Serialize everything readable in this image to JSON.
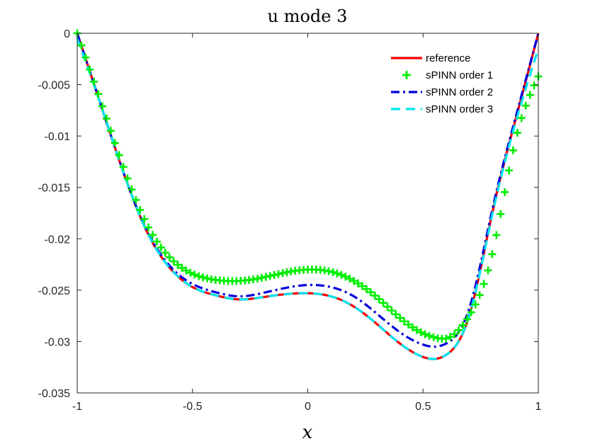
{
  "chart_data": {
    "type": "line",
    "title": "u mode 3",
    "xlabel": "x",
    "ylabel": "",
    "xlim": [
      -1,
      1
    ],
    "ylim": [
      -0.035,
      0
    ],
    "xticks": [
      -1,
      -0.5,
      0,
      0.5,
      1
    ],
    "xtick_labels": [
      "-1",
      "-0.5",
      "0",
      "0.5",
      "1"
    ],
    "yticks": [
      0,
      -0.005,
      -0.01,
      -0.015,
      -0.02,
      -0.025,
      -0.03,
      -0.035
    ],
    "ytick_labels": [
      "0",
      "-0.005",
      "-0.01",
      "-0.015",
      "-0.02",
      "-0.025",
      "-0.03",
      "-0.035"
    ],
    "grid": false,
    "legend_position": "top-right",
    "x": [
      -1.0,
      -0.9,
      -0.8,
      -0.7,
      -0.6,
      -0.5,
      -0.4,
      -0.3,
      -0.2,
      -0.1,
      0.0,
      0.1,
      0.2,
      0.3,
      0.4,
      0.5,
      0.55,
      0.6,
      0.7,
      0.8,
      0.9,
      1.0
    ],
    "series": [
      {
        "name": "reference",
        "color": "#ff0000",
        "style": "solid",
        "values": [
          0.0,
          -0.0068,
          -0.0135,
          -0.0192,
          -0.0228,
          -0.0247,
          -0.0255,
          -0.0259,
          -0.0257,
          -0.0254,
          -0.0253,
          -0.0256,
          -0.0266,
          -0.0283,
          -0.0302,
          -0.0315,
          -0.0317,
          -0.0313,
          -0.0275,
          -0.0175,
          -0.0085,
          0.0
        ]
      },
      {
        "name": "sPINN order 1",
        "color": "#00ee00",
        "style": "plus-markers",
        "values": [
          0.0,
          -0.0065,
          -0.013,
          -0.0185,
          -0.0218,
          -0.0234,
          -0.024,
          -0.0241,
          -0.0238,
          -0.0233,
          -0.023,
          -0.0232,
          -0.0241,
          -0.0257,
          -0.0277,
          -0.0292,
          -0.0296,
          -0.0297,
          -0.0275,
          -0.0215,
          -0.0105,
          -0.0042
        ]
      },
      {
        "name": "sPINN order 2",
        "color": "#0000dd",
        "style": "dash-dot",
        "values": [
          0.0,
          -0.0068,
          -0.0135,
          -0.0191,
          -0.0226,
          -0.0244,
          -0.0252,
          -0.0256,
          -0.0253,
          -0.0248,
          -0.0245,
          -0.0247,
          -0.0256,
          -0.0273,
          -0.0291,
          -0.0303,
          -0.0305,
          -0.0302,
          -0.0268,
          -0.0172,
          -0.0083,
          0.0
        ]
      },
      {
        "name": "sPINN order 3",
        "color": "#00e5ee",
        "style": "dashed",
        "values": [
          -0.0005,
          -0.0068,
          -0.0135,
          -0.0192,
          -0.0228,
          -0.0247,
          -0.0255,
          -0.0259,
          -0.0257,
          -0.0254,
          -0.0253,
          -0.0256,
          -0.0266,
          -0.0283,
          -0.0302,
          -0.0315,
          -0.0317,
          -0.0313,
          -0.0275,
          -0.0177,
          -0.0088,
          -0.0015
        ]
      }
    ]
  }
}
